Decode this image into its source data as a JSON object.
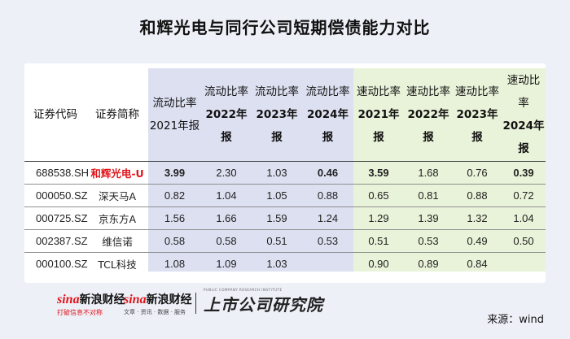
{
  "title": "和辉光电与同行公司短期偿债能力对比",
  "table": {
    "headers": [
      {
        "line1": "证券代码",
        "line2": ""
      },
      {
        "line1": "证券简称",
        "line2": ""
      },
      {
        "line1": "流动比率",
        "line2": "2021年报"
      },
      {
        "line1": "流动比率",
        "line2": "2022年报"
      },
      {
        "line1": "流动比率",
        "line2": "2023年报"
      },
      {
        "line1": "流动比率",
        "line2": "2024年报"
      },
      {
        "line1": "速动比率",
        "line2": "2021年报"
      },
      {
        "line1": "速动比率",
        "line2": "2022年报"
      },
      {
        "line1": "速动比率",
        "line2": "2023年报"
      },
      {
        "line1": "速动比率",
        "line2": "2024年报"
      }
    ],
    "rows": [
      [
        "688538.SH",
        "和辉光电-U",
        "3.99",
        "2.30",
        "1.03",
        "0.46",
        "3.59",
        "1.68",
        "0.76",
        "0.39"
      ],
      [
        "000050.SZ",
        "深天马A",
        "0.82",
        "1.04",
        "1.05",
        "0.88",
        "0.65",
        "0.81",
        "0.88",
        "0.72"
      ],
      [
        "000725.SZ",
        "京东方A",
        "1.56",
        "1.66",
        "1.59",
        "1.24",
        "1.29",
        "1.39",
        "1.32",
        "1.04"
      ],
      [
        "002387.SZ",
        "维信诺",
        "0.58",
        "0.58",
        "0.51",
        "0.53",
        "0.51",
        "0.53",
        "0.49",
        "0.50"
      ],
      [
        "000100.SZ",
        "TCL科技",
        "1.08",
        "1.09",
        "1.03",
        "",
        "0.90",
        "0.89",
        "0.84",
        ""
      ]
    ]
  },
  "colors": {
    "highlight_name": "#e0151b",
    "value_2021": "#f0a11d",
    "value_2024": "#e0151b",
    "band_current_ratio": "#dde0f1",
    "band_quick_ratio": "#e9f3d9"
  },
  "footer": {
    "logo1_mark": "sina",
    "logo1_name": "新浪财经",
    "logo1_tagline": "打破信息不对称",
    "logo2_mark": "sina",
    "logo2_name": "新浪财经",
    "logo2_tagline": "文章 · 资讯 · 数据 · 服务",
    "logo3_top": "PUBLIC COMPANY RESEARCH INSTITUTE",
    "logo3_name": "上市公司研究院",
    "source": "来源：wind"
  }
}
